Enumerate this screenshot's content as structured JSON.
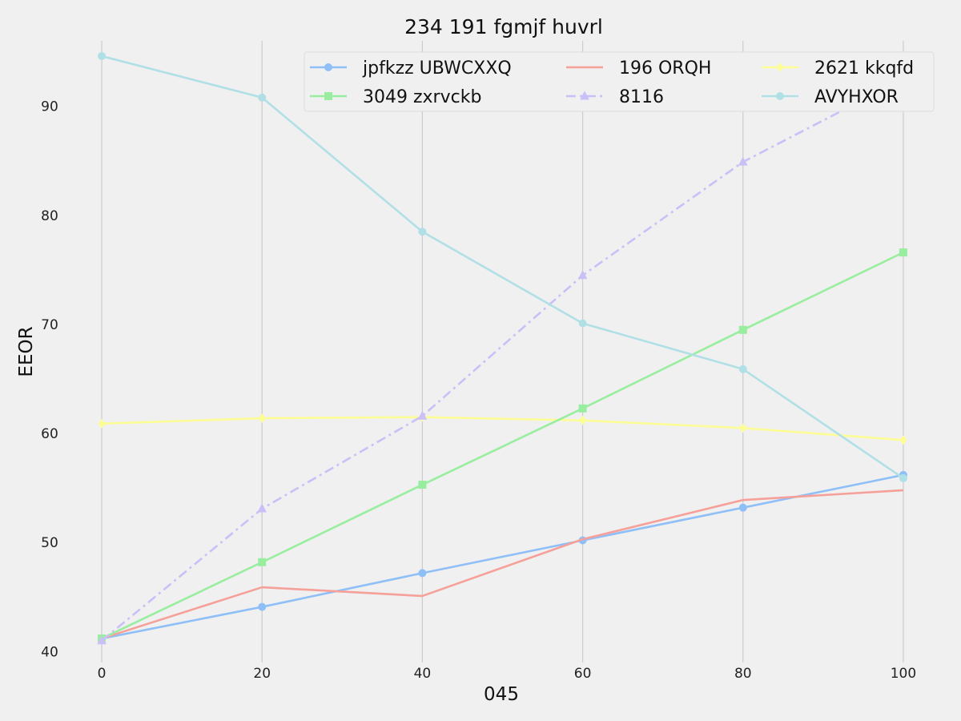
{
  "chart_data": {
    "type": "line",
    "title": "234 191 fgmjf huvrl",
    "xlabel": "045",
    "ylabel": "EEOR",
    "x": [
      0,
      20,
      40,
      60,
      80,
      100
    ],
    "xticks": [
      "0",
      "20",
      "40",
      "60",
      "80",
      "100"
    ],
    "yticks": [
      "40",
      "50",
      "60",
      "70",
      "80",
      "90"
    ],
    "xlim": [
      -5,
      105
    ],
    "ylim": [
      39,
      96
    ],
    "grid": "vertical",
    "legend": {
      "placement": "top-right",
      "columns": 3
    },
    "series": [
      {
        "name": "jpfkzz UBWCXXQ",
        "color": "#8fbff7",
        "marker": "circle",
        "dash": "solid",
        "values": [
          41.2,
          44.1,
          47.2,
          50.2,
          53.2,
          56.2
        ]
      },
      {
        "name": "196 ORQH",
        "color": "#f6a09a",
        "marker": "none",
        "dash": "solid",
        "values": [
          41.2,
          45.9,
          45.1,
          50.3,
          53.9,
          54.8
        ]
      },
      {
        "name": "2621 kkqfd",
        "color": "#fdfd96",
        "marker": "diamond",
        "dash": "solid",
        "values": [
          60.9,
          61.4,
          61.5,
          61.2,
          60.5,
          59.4
        ]
      },
      {
        "name": "3049 zxrvckb",
        "color": "#98ee9e",
        "marker": "square",
        "dash": "solid",
        "values": [
          41.2,
          48.2,
          55.3,
          62.3,
          69.5,
          76.6
        ]
      },
      {
        "name": "8116",
        "color": "#cbbff7",
        "marker": "triangle",
        "dash": "dashdot",
        "values": [
          41.0,
          53.1,
          61.6,
          74.5,
          84.9,
          92.5
        ]
      },
      {
        "name": "AVYHXOR",
        "color": "#b0e0e6",
        "marker": "circle",
        "dash": "solid",
        "values": [
          94.6,
          90.8,
          78.5,
          70.1,
          65.9,
          55.9
        ]
      }
    ]
  }
}
